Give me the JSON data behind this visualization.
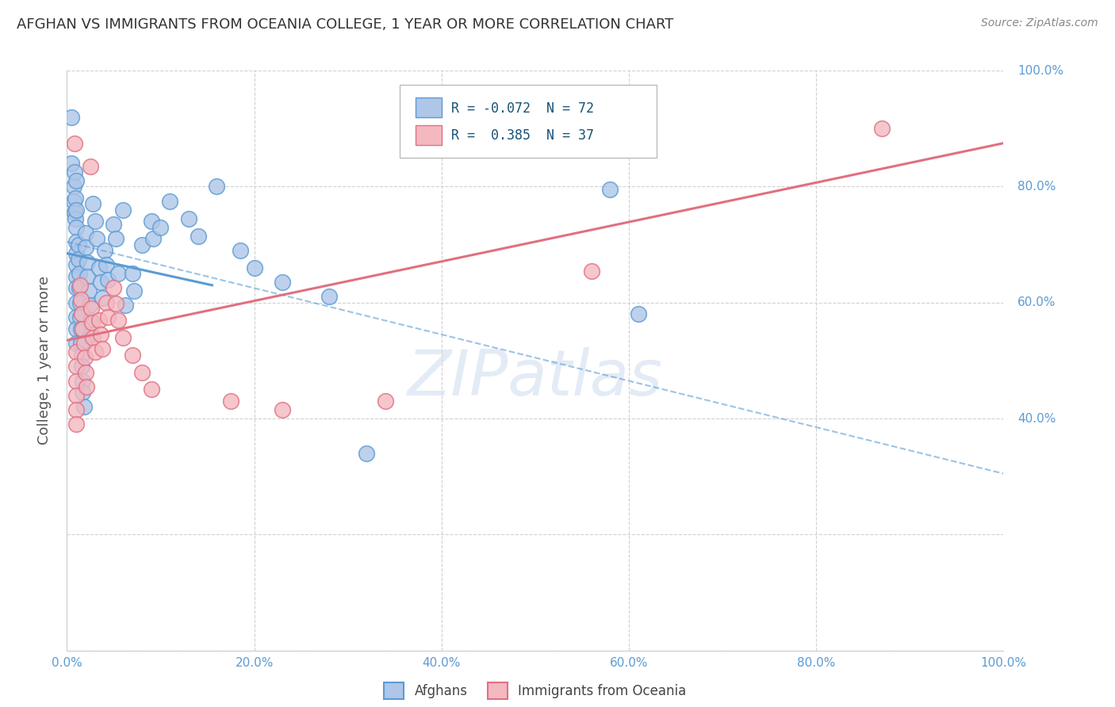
{
  "title": "AFGHAN VS IMMIGRANTS FROM OCEANIA COLLEGE, 1 YEAR OR MORE CORRELATION CHART",
  "source": "Source: ZipAtlas.com",
  "ylabel": "College, 1 year or more",
  "xlim": [
    0.0,
    1.0
  ],
  "ylim": [
    0.0,
    1.0
  ],
  "blue_color": "#5b9bd5",
  "pink_color": "#e07080",
  "blue_fill": "#aec6e8",
  "pink_fill": "#f4b8c1",
  "watermark": "ZIPatlas",
  "blue_trend_solid": [
    0.0,
    0.685,
    0.155,
    0.63
  ],
  "blue_trend_dashed": [
    0.0,
    0.705,
    1.0,
    0.305
  ],
  "pink_trend_solid": [
    0.0,
    0.535,
    1.0,
    0.875
  ],
  "blue_scatter": [
    [
      0.005,
      0.92
    ],
    [
      0.005,
      0.84
    ],
    [
      0.007,
      0.8
    ],
    [
      0.007,
      0.775
    ],
    [
      0.008,
      0.825
    ],
    [
      0.008,
      0.755
    ],
    [
      0.009,
      0.78
    ],
    [
      0.009,
      0.745
    ],
    [
      0.01,
      0.81
    ],
    [
      0.01,
      0.76
    ],
    [
      0.01,
      0.73
    ],
    [
      0.01,
      0.705
    ],
    [
      0.01,
      0.685
    ],
    [
      0.01,
      0.665
    ],
    [
      0.01,
      0.645
    ],
    [
      0.01,
      0.625
    ],
    [
      0.01,
      0.6
    ],
    [
      0.01,
      0.575
    ],
    [
      0.01,
      0.555
    ],
    [
      0.01,
      0.53
    ],
    [
      0.012,
      0.7
    ],
    [
      0.012,
      0.675
    ],
    [
      0.013,
      0.65
    ],
    [
      0.013,
      0.625
    ],
    [
      0.014,
      0.6
    ],
    [
      0.014,
      0.575
    ],
    [
      0.015,
      0.555
    ],
    [
      0.015,
      0.53
    ],
    [
      0.016,
      0.51
    ],
    [
      0.016,
      0.49
    ],
    [
      0.017,
      0.465
    ],
    [
      0.017,
      0.445
    ],
    [
      0.018,
      0.42
    ],
    [
      0.02,
      0.72
    ],
    [
      0.02,
      0.695
    ],
    [
      0.022,
      0.67
    ],
    [
      0.022,
      0.645
    ],
    [
      0.023,
      0.62
    ],
    [
      0.024,
      0.595
    ],
    [
      0.025,
      0.57
    ],
    [
      0.026,
      0.545
    ],
    [
      0.028,
      0.77
    ],
    [
      0.03,
      0.74
    ],
    [
      0.032,
      0.71
    ],
    [
      0.034,
      0.66
    ],
    [
      0.036,
      0.635
    ],
    [
      0.038,
      0.608
    ],
    [
      0.04,
      0.69
    ],
    [
      0.042,
      0.665
    ],
    [
      0.044,
      0.64
    ],
    [
      0.05,
      0.735
    ],
    [
      0.052,
      0.71
    ],
    [
      0.055,
      0.65
    ],
    [
      0.06,
      0.76
    ],
    [
      0.062,
      0.595
    ],
    [
      0.07,
      0.65
    ],
    [
      0.072,
      0.62
    ],
    [
      0.08,
      0.7
    ],
    [
      0.09,
      0.74
    ],
    [
      0.092,
      0.71
    ],
    [
      0.1,
      0.73
    ],
    [
      0.11,
      0.775
    ],
    [
      0.13,
      0.745
    ],
    [
      0.14,
      0.715
    ],
    [
      0.16,
      0.8
    ],
    [
      0.185,
      0.69
    ],
    [
      0.2,
      0.66
    ],
    [
      0.23,
      0.635
    ],
    [
      0.28,
      0.61
    ],
    [
      0.32,
      0.34
    ],
    [
      0.58,
      0.795
    ],
    [
      0.61,
      0.58
    ]
  ],
  "pink_scatter": [
    [
      0.008,
      0.875
    ],
    [
      0.01,
      0.515
    ],
    [
      0.01,
      0.49
    ],
    [
      0.01,
      0.465
    ],
    [
      0.01,
      0.44
    ],
    [
      0.01,
      0.415
    ],
    [
      0.01,
      0.39
    ],
    [
      0.014,
      0.63
    ],
    [
      0.015,
      0.605
    ],
    [
      0.016,
      0.58
    ],
    [
      0.017,
      0.555
    ],
    [
      0.018,
      0.53
    ],
    [
      0.019,
      0.505
    ],
    [
      0.02,
      0.48
    ],
    [
      0.021,
      0.455
    ],
    [
      0.025,
      0.835
    ],
    [
      0.026,
      0.59
    ],
    [
      0.027,
      0.565
    ],
    [
      0.028,
      0.54
    ],
    [
      0.03,
      0.515
    ],
    [
      0.034,
      0.57
    ],
    [
      0.036,
      0.545
    ],
    [
      0.038,
      0.52
    ],
    [
      0.042,
      0.6
    ],
    [
      0.044,
      0.575
    ],
    [
      0.05,
      0.625
    ],
    [
      0.052,
      0.598
    ],
    [
      0.055,
      0.57
    ],
    [
      0.06,
      0.54
    ],
    [
      0.07,
      0.51
    ],
    [
      0.08,
      0.48
    ],
    [
      0.09,
      0.45
    ],
    [
      0.175,
      0.43
    ],
    [
      0.23,
      0.415
    ],
    [
      0.34,
      0.43
    ],
    [
      0.56,
      0.655
    ],
    [
      0.87,
      0.9
    ]
  ]
}
